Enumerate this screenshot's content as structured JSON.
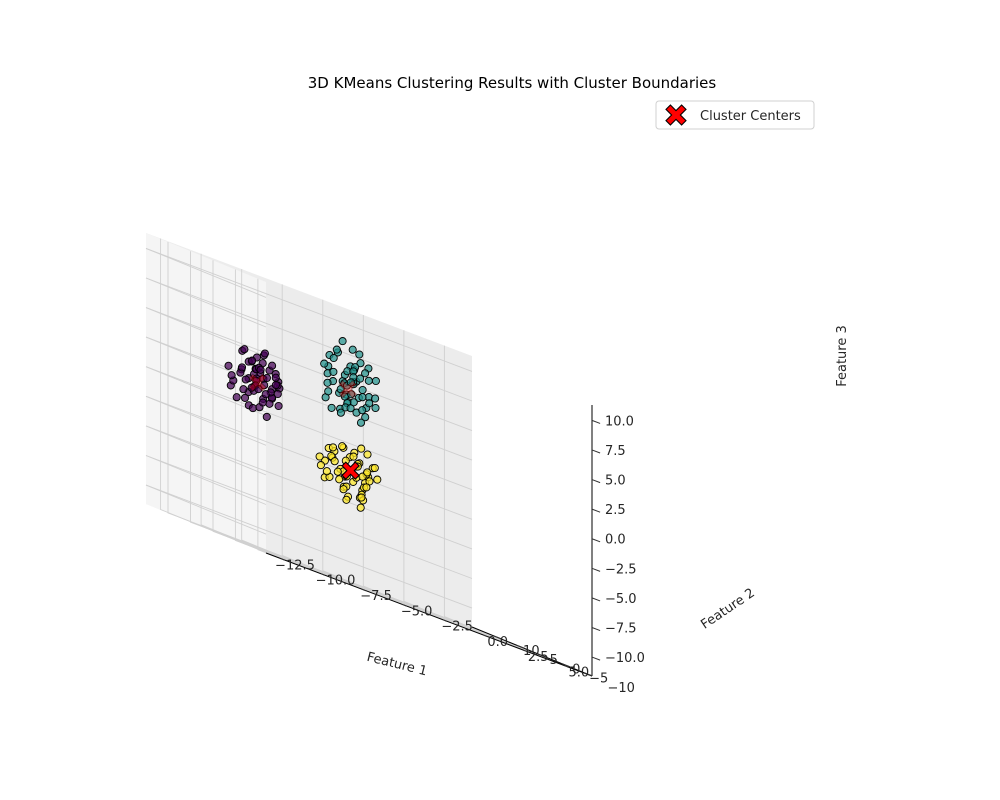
{
  "chart_data": {
    "type": "scatter",
    "title": "3D KMeans Clustering Results with Cluster Boundaries",
    "xlabel": "Feature 1",
    "ylabel": "Feature 2",
    "zlabel": "Feature 3",
    "x_ticks": [
      "−12.5",
      "−10.0",
      "−7.5",
      "−5.0",
      "−2.5",
      "0.0",
      "2.5",
      "5.0"
    ],
    "y_ticks": [
      "−10",
      "−5",
      "0",
      "5",
      "10"
    ],
    "z_ticks": [
      "−10.0",
      "−7.5",
      "−5.0",
      "−2.5",
      "0.0",
      "2.5",
      "5.0",
      "7.5",
      "10.0"
    ],
    "legend": {
      "label": "Cluster Centers",
      "placement": "top-right"
    },
    "colors": {
      "cluster_0": "#440154",
      "cluster_1": "#21918c",
      "cluster_2": "#fde725",
      "center": "#ff0000"
    },
    "centers": [
      {
        "cluster": 0,
        "x": -8.6,
        "y": 7.4,
        "z": 2.3
      },
      {
        "cluster": 1,
        "x": -2.6,
        "y": 9.0,
        "z": 4.6
      },
      {
        "cluster": 2,
        "x": -6.8,
        "y": -6.8,
        "z": -2.0
      }
    ],
    "series": [
      {
        "cluster": 0,
        "points": [
          [
            -8.1,
            7.9,
            2.8
          ],
          [
            -9.0,
            6.8,
            1.5
          ],
          [
            -8.5,
            8.2,
            3.4
          ],
          [
            -7.9,
            7.0,
            1.9
          ],
          [
            -9.6,
            7.6,
            2.6
          ],
          [
            -8.3,
            6.4,
            3.0
          ],
          [
            -8.8,
            8.7,
            1.2
          ],
          [
            -7.6,
            7.8,
            2.2
          ],
          [
            -9.2,
            7.2,
            3.8
          ],
          [
            -8.0,
            6.9,
            0.9
          ],
          [
            -8.7,
            7.5,
            2.0
          ],
          [
            -9.9,
            8.1,
            1.7
          ],
          [
            -7.5,
            7.3,
            3.3
          ],
          [
            -8.4,
            8.9,
            2.9
          ],
          [
            -9.4,
            6.5,
            2.4
          ],
          [
            -8.2,
            7.7,
            4.1
          ],
          [
            -7.8,
            6.2,
            2.7
          ],
          [
            -9.1,
            8.4,
            0.6
          ],
          [
            -8.6,
            7.1,
            3.6
          ],
          [
            -10.2,
            7.4,
            2.1
          ],
          [
            -7.4,
            8.5,
            1.4
          ],
          [
            -8.9,
            6.1,
            1.8
          ],
          [
            -8.5,
            7.9,
            4.4
          ],
          [
            -9.7,
            6.9,
            3.1
          ],
          [
            -7.2,
            7.6,
            2.5
          ],
          [
            -8.0,
            8.3,
            1.1
          ],
          [
            -9.3,
            7.8,
            4.7
          ],
          [
            -8.7,
            6.6,
            0.3
          ],
          [
            -7.7,
            8.0,
            3.7
          ],
          [
            -9.5,
            7.3,
            1.3
          ],
          [
            -8.3,
            7.0,
            2.3
          ],
          [
            -8.1,
            8.6,
            3.2
          ],
          [
            -9.0,
            7.9,
            0.1
          ],
          [
            -7.9,
            6.7,
            4.2
          ],
          [
            -10.5,
            7.0,
            2.8
          ],
          [
            -8.4,
            6.3,
            1.6
          ],
          [
            -7.3,
            7.4,
            1.0
          ],
          [
            -9.2,
            8.8,
            2.9
          ],
          [
            -8.8,
            6.0,
            3.5
          ],
          [
            -8.2,
            7.2,
            5.0
          ],
          [
            -9.8,
            7.7,
            0.4
          ],
          [
            -7.6,
            6.5,
            2.0
          ],
          [
            -8.6,
            8.1,
            1.9
          ],
          [
            -9.1,
            6.8,
            4.0
          ],
          [
            -8.0,
            7.5,
            -0.3
          ],
          [
            -7.1,
            8.2,
            3.0
          ],
          [
            -9.6,
            6.4,
            2.2
          ],
          [
            -8.9,
            7.6,
            3.9
          ],
          [
            -8.3,
            8.7,
            2.6
          ],
          [
            -7.8,
            7.1,
            1.5
          ],
          [
            -9.4,
            7.9,
            4.5
          ],
          [
            -8.5,
            6.6,
            0.8
          ],
          [
            -8.7,
            7.3,
            3.4
          ],
          [
            -10.0,
            8.3,
            1.2
          ],
          [
            -7.5,
            6.9,
            2.7
          ],
          [
            -8.1,
            7.8,
            4.8
          ],
          [
            -9.3,
            6.2,
            1.7
          ],
          [
            -8.4,
            8.4,
            2.4
          ],
          [
            -9.0,
            7.0,
            0.0
          ],
          [
            -7.4,
            7.7,
            3.6
          ]
        ]
      },
      {
        "cluster": 1,
        "points": [
          [
            -2.1,
            9.5,
            5.2
          ],
          [
            -3.0,
            8.2,
            3.9
          ],
          [
            -2.4,
            9.8,
            6.1
          ],
          [
            -1.8,
            8.6,
            4.4
          ],
          [
            -3.4,
            9.3,
            5.6
          ],
          [
            -2.7,
            8.0,
            3.1
          ],
          [
            -1.5,
            9.1,
            6.5
          ],
          [
            -3.2,
            10.1,
            4.8
          ],
          [
            -2.0,
            8.4,
            5.9
          ],
          [
            -2.9,
            9.6,
            2.7
          ],
          [
            -1.3,
            8.9,
            4.1
          ],
          [
            -3.6,
            8.5,
            6.8
          ],
          [
            -2.2,
            10.4,
            3.5
          ],
          [
            -2.6,
            7.8,
            5.4
          ],
          [
            -1.7,
            9.4,
            7.2
          ],
          [
            -3.8,
            9.0,
            3.8
          ],
          [
            -2.5,
            8.1,
            6.3
          ],
          [
            -1.1,
            9.7,
            4.6
          ],
          [
            -3.1,
            8.7,
            2.4
          ],
          [
            -2.3,
            10.7,
            5.7
          ],
          [
            -1.9,
            8.3,
            3.3
          ],
          [
            -3.5,
            9.8,
            6.9
          ],
          [
            -2.8,
            7.5,
            4.3
          ],
          [
            -1.4,
            10.0,
            5.0
          ],
          [
            -3.3,
            8.9,
            7.6
          ],
          [
            -2.0,
            9.2,
            2.9
          ],
          [
            -2.6,
            10.9,
            4.0
          ],
          [
            -1.6,
            7.9,
            6.0
          ],
          [
            -3.7,
            9.5,
            5.3
          ],
          [
            -2.4,
            8.6,
            8.1
          ],
          [
            -1.2,
            9.9,
            3.6
          ],
          [
            -3.0,
            7.7,
            4.9
          ],
          [
            -2.1,
            10.2,
            6.6
          ],
          [
            -2.9,
            8.4,
            3.0
          ],
          [
            -1.8,
            9.3,
            7.9
          ],
          [
            -3.9,
            8.8,
            4.5
          ],
          [
            -2.3,
            11.2,
            5.1
          ],
          [
            -1.0,
            8.5,
            6.2
          ],
          [
            -3.4,
            9.7,
            2.5
          ],
          [
            -2.7,
            7.4,
            5.8
          ],
          [
            -1.5,
            10.5,
            4.2
          ],
          [
            -3.2,
            9.0,
            7.4
          ],
          [
            -2.5,
            8.0,
            3.7
          ],
          [
            -1.9,
            9.6,
            5.5
          ],
          [
            -3.6,
            10.3,
            3.2
          ],
          [
            -2.2,
            8.8,
            6.7
          ],
          [
            -1.3,
            7.6,
            4.7
          ],
          [
            -2.8,
            9.4,
            8.5
          ],
          [
            -3.1,
            11.5,
            5.9
          ],
          [
            -2.0,
            8.2,
            2.2
          ],
          [
            -1.7,
            10.8,
            6.4
          ],
          [
            -3.5,
            7.3,
            4.4
          ],
          [
            -2.6,
            9.1,
            3.4
          ],
          [
            -1.1,
            9.8,
            7.0
          ],
          [
            -3.0,
            8.3,
            5.0
          ],
          [
            -2.4,
            10.0,
            4.1
          ],
          [
            -1.6,
            8.7,
            2.8
          ],
          [
            -3.8,
            9.9,
            6.0
          ],
          [
            -2.9,
            7.2,
            5.3
          ],
          [
            -0.8,
            9.3,
            3.9
          ]
        ]
      },
      {
        "cluster": 2,
        "points": [
          [
            -6.3,
            -6.2,
            -1.5
          ],
          [
            -7.2,
            -7.4,
            -2.6
          ],
          [
            -6.6,
            -5.9,
            -0.9
          ],
          [
            -7.5,
            -6.8,
            -3.1
          ],
          [
            -5.9,
            -7.1,
            -1.8
          ],
          [
            -6.9,
            -5.6,
            -2.3
          ],
          [
            -7.8,
            -6.5,
            -0.6
          ],
          [
            -6.1,
            -7.8,
            -2.9
          ],
          [
            -7.0,
            -6.0,
            -3.6
          ],
          [
            -6.4,
            -7.3,
            -1.1
          ],
          [
            -5.6,
            -6.4,
            -2.0
          ],
          [
            -7.6,
            -5.4,
            -1.4
          ],
          [
            -6.8,
            -8.1,
            -2.4
          ],
          [
            -5.8,
            -5.8,
            -3.3
          ],
          [
            -7.3,
            -7.0,
            -0.3
          ],
          [
            -6.2,
            -6.7,
            -4.0
          ],
          [
            -8.0,
            -7.6,
            -1.7
          ],
          [
            -6.7,
            -5.2,
            -2.7
          ],
          [
            -5.5,
            -7.5,
            -1.0
          ],
          [
            -7.1,
            -6.3,
            -3.8
          ],
          [
            -6.5,
            -8.4,
            -2.1
          ],
          [
            -7.9,
            -5.9,
            -0.8
          ],
          [
            -6.0,
            -6.9,
            -3.0
          ],
          [
            -7.4,
            -7.9,
            -1.3
          ],
          [
            -6.6,
            -5.5,
            -4.3
          ],
          [
            -5.7,
            -6.6,
            -0.1
          ],
          [
            -7.7,
            -7.2,
            -2.5
          ],
          [
            -6.3,
            -8.7,
            -1.6
          ],
          [
            -8.2,
            -6.1,
            -3.4
          ],
          [
            -6.9,
            -4.9,
            -2.2
          ],
          [
            -5.4,
            -7.7,
            -1.9
          ],
          [
            -7.0,
            -6.6,
            -4.6
          ],
          [
            -6.1,
            -5.1,
            -0.4
          ],
          [
            -8.4,
            -7.3,
            -2.8
          ],
          [
            -6.7,
            -8.0,
            -1.2
          ],
          [
            -5.9,
            -6.0,
            -3.7
          ],
          [
            -7.5,
            -5.3,
            -1.5
          ],
          [
            -6.4,
            -7.6,
            -4.8
          ],
          [
            -7.2,
            -8.9,
            -0.7
          ],
          [
            -5.6,
            -5.7,
            -2.6
          ],
          [
            -8.1,
            -6.8,
            -3.2
          ],
          [
            -6.2,
            -7.0,
            0.2
          ],
          [
            -7.8,
            -4.7,
            -2.0
          ],
          [
            -6.8,
            -9.2,
            -3.9
          ],
          [
            -5.3,
            -6.3,
            -1.1
          ],
          [
            -7.6,
            -7.8,
            -0.2
          ],
          [
            -6.0,
            -4.5,
            -2.9
          ],
          [
            -8.6,
            -6.4,
            -1.8
          ],
          [
            -6.5,
            -8.5,
            -4.1
          ],
          [
            -7.3,
            -5.0,
            -0.9
          ],
          [
            -5.8,
            -7.4,
            -2.3
          ],
          [
            -7.1,
            -9.5,
            -1.4
          ],
          [
            -6.9,
            -6.2,
            -3.5
          ],
          [
            -8.3,
            -5.6,
            -2.5
          ]
        ]
      }
    ]
  }
}
